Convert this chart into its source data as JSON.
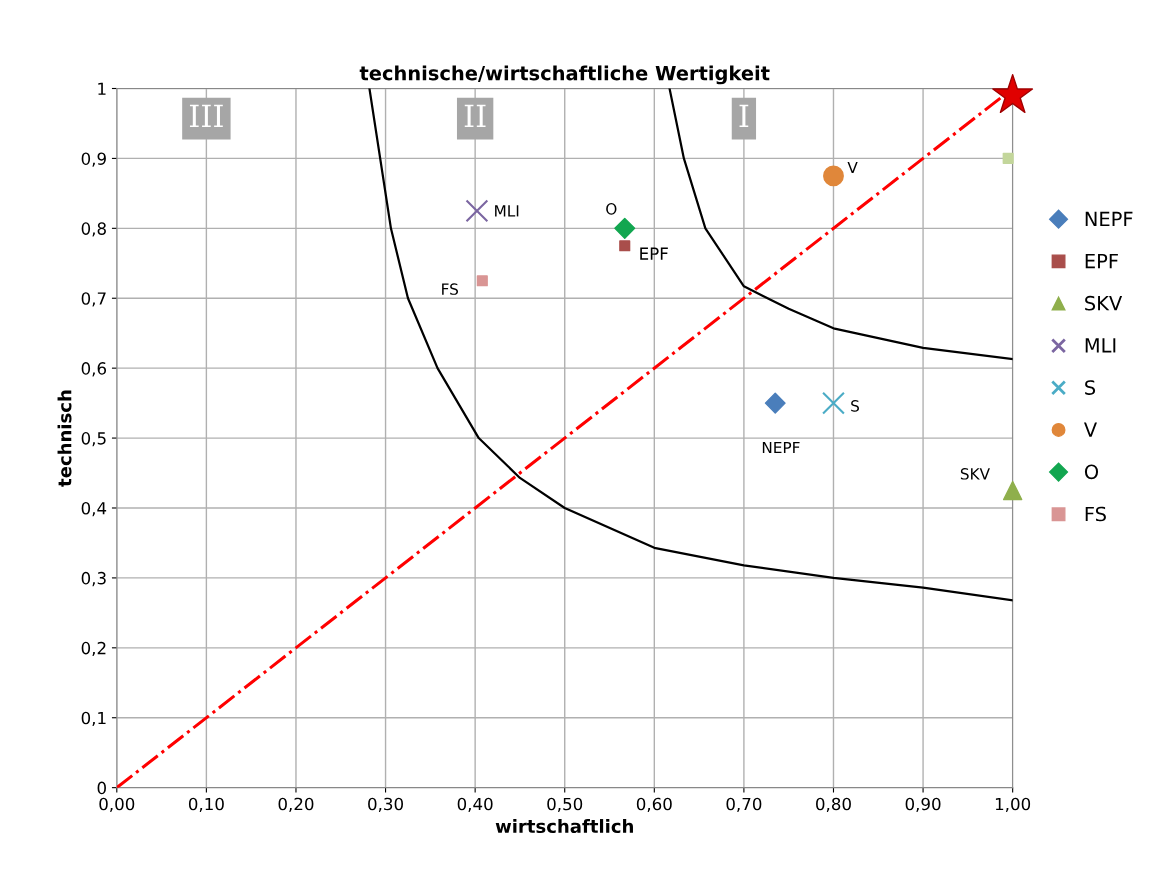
{
  "chart_data": {
    "type": "scatter",
    "title": "technische/wirtschaftliche Wertigkeit",
    "xlabel": "wirtschaftlich",
    "ylabel": "technisch",
    "xlim": [
      0,
      1
    ],
    "ylim": [
      0,
      1
    ],
    "xticks": [
      {
        "value": 0,
        "label": "0,00"
      },
      {
        "value": 0.1,
        "label": "0,10"
      },
      {
        "value": 0.2,
        "label": "0,20"
      },
      {
        "value": 0.3,
        "label": "0,30"
      },
      {
        "value": 0.4,
        "label": "0,40"
      },
      {
        "value": 0.5,
        "label": "0,50"
      },
      {
        "value": 0.6,
        "label": "0,60"
      },
      {
        "value": 0.7,
        "label": "0,70"
      },
      {
        "value": 0.8,
        "label": "0,80"
      },
      {
        "value": 0.9,
        "label": "0,90"
      },
      {
        "value": 1,
        "label": "1,00"
      }
    ],
    "yticks": [
      0,
      {
        "value": 0.1,
        "label": "0,1"
      },
      {
        "value": 0.2,
        "label": "0,2"
      },
      {
        "value": 0.3,
        "label": "0,3"
      },
      {
        "value": 0.4,
        "label": "0,4"
      },
      {
        "value": 0.5,
        "label": "0,5"
      },
      {
        "value": 0.6,
        "label": "0,6"
      },
      {
        "value": 0.7,
        "label": "0,7"
      },
      {
        "value": 0.8,
        "label": "0,8"
      },
      {
        "value": 0.9,
        "label": "0,9"
      },
      1
    ],
    "grid": true,
    "legend": "right",
    "series": [
      {
        "name": "NEPF",
        "color": "#4a7ebb",
        "marker": "diamond",
        "x": [
          0.735
        ],
        "values": [
          0.55
        ]
      },
      {
        "name": "EPF",
        "color": "#a94e4b",
        "marker": "square",
        "x": [
          0.567
        ],
        "values": [
          0.775
        ]
      },
      {
        "name": "SKV",
        "color": "#8faf4c",
        "marker": "triangle",
        "x": [
          1.0
        ],
        "values": [
          0.425
        ]
      },
      {
        "name": "MLI",
        "color": "#7b66a1",
        "marker": "cross",
        "x": [
          0.402
        ],
        "values": [
          0.825
        ]
      },
      {
        "name": "S",
        "color": "#4bacc6",
        "marker": "cross",
        "x": [
          0.8
        ],
        "values": [
          0.55
        ]
      },
      {
        "name": "V",
        "color": "#e0873a",
        "marker": "circle",
        "x": [
          0.8
        ],
        "values": [
          0.875
        ]
      },
      {
        "name": "O",
        "color": "#12a650",
        "marker": "diamond",
        "x": [
          0.567
        ],
        "values": [
          0.8
        ]
      },
      {
        "name": "FS",
        "color": "#d99594",
        "marker": "square",
        "x": [
          0.408
        ],
        "values": [
          0.725
        ]
      },
      {
        "color": "#c3d69b",
        "marker": "square",
        "x": [
          0.995
        ],
        "values": [
          0.9
        ]
      },
      {
        "color": "#e00000",
        "marker": "star",
        "x": [
          1.0
        ],
        "values": [
          0.99
        ]
      },
      {
        "type": "line",
        "color": "#ff0000",
        "line_style": "dashdot",
        "x": [
          0,
          1
        ],
        "values": [
          0,
          1
        ]
      },
      {
        "type": "line",
        "color": "#000000",
        "line_style": "solid",
        "x": [
          0.282,
          0.306,
          0.325,
          0.358,
          0.404,
          0.45,
          0.5,
          0.6,
          0.7,
          0.8,
          0.9,
          1.0
        ],
        "values": [
          1.0,
          0.8,
          0.7,
          0.6,
          0.5,
          0.443,
          0.4,
          0.343,
          0.318,
          0.3,
          0.286,
          0.268
        ]
      },
      {
        "type": "line",
        "color": "#000000",
        "line_style": "solid",
        "x": [
          0.617,
          0.633,
          0.657,
          0.7,
          0.75,
          0.8,
          0.9,
          1.0
        ],
        "values": [
          1.0,
          0.9,
          0.8,
          0.717,
          0.685,
          0.657,
          0.629,
          0.613
        ]
      }
    ],
    "annotations": [
      "III",
      "II",
      "I"
    ]
  }
}
